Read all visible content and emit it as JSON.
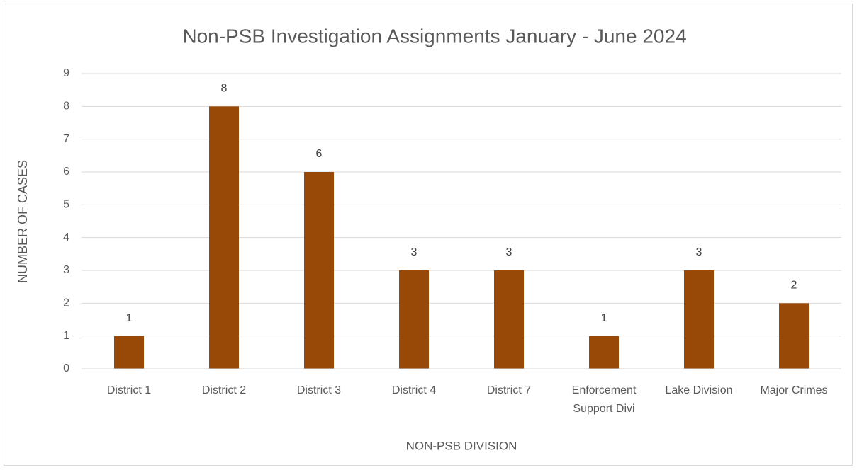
{
  "chart_data": {
    "type": "bar",
    "title": "Non-PSB Investigation Assignments January - June 2024",
    "x_label": "NON-PSB DIVISION",
    "y_label": "NUMBER OF CASES",
    "categories": [
      "District 1",
      "District 2",
      "District 3",
      "District 4",
      "District 7",
      "Enforcement Support Divi",
      "Lake Division",
      "Major Crimes"
    ],
    "values": [
      1,
      8,
      6,
      3,
      3,
      1,
      3,
      2
    ],
    "color": "#984807",
    "ylim": [
      0,
      9
    ],
    "yticks": [
      0,
      1,
      2,
      3,
      4,
      5,
      6,
      7,
      8,
      9
    ],
    "grid": true,
    "data_labels": true
  }
}
